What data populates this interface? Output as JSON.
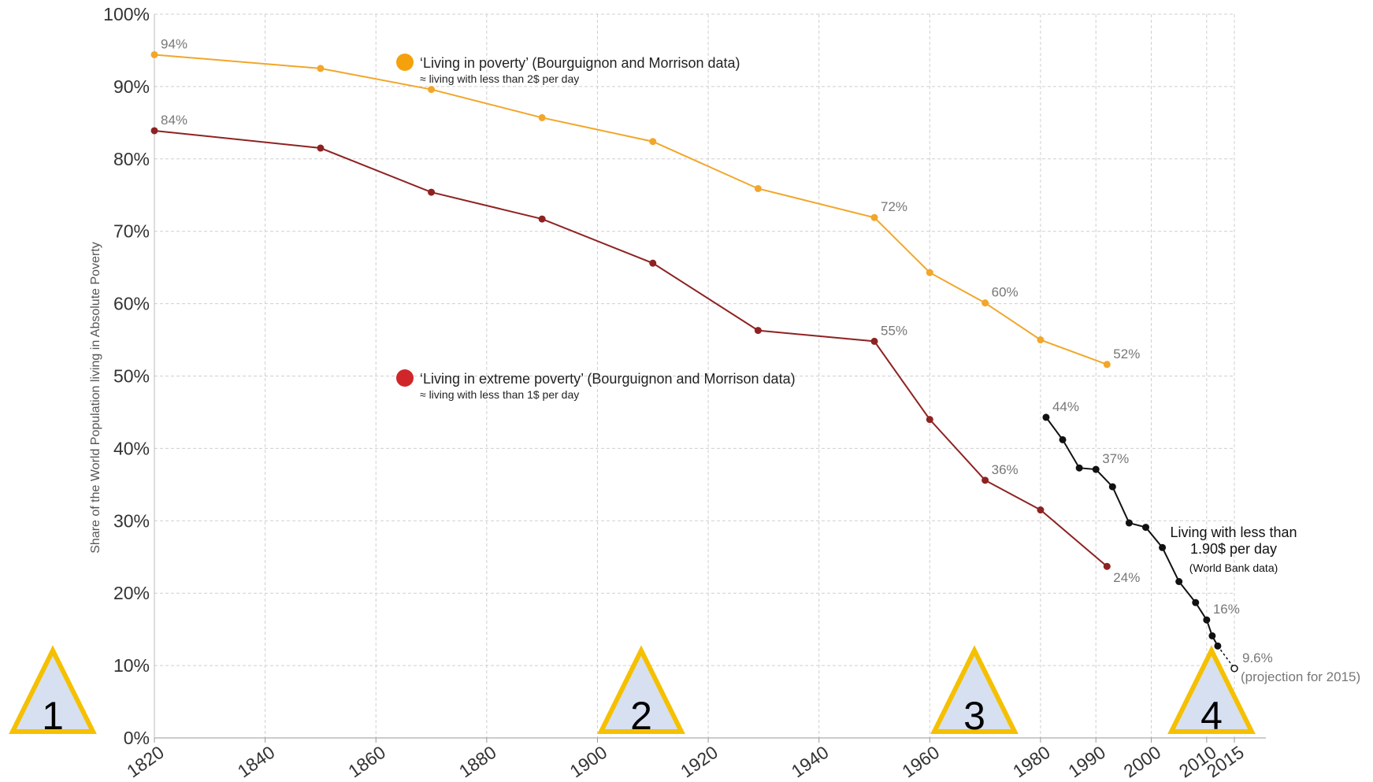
{
  "chart_data": {
    "type": "line",
    "ylabel": "Share of the World Population living in Absolute Poverty",
    "xlim": [
      1820,
      2015
    ],
    "xticks": [
      1820,
      1840,
      1860,
      1880,
      1900,
      1920,
      1940,
      1960,
      1980,
      1990,
      2000,
      2010,
      2015
    ],
    "ylim": [
      0,
      100
    ],
    "yticks": [
      {
        "value": 0,
        "label": "0%"
      },
      {
        "value": 10,
        "label": "10%"
      },
      {
        "value": 20,
        "label": "20%"
      },
      {
        "value": 30,
        "label": "30%"
      },
      {
        "value": 40,
        "label": "40%"
      },
      {
        "value": 50,
        "label": "50%"
      },
      {
        "value": 60,
        "label": "60%"
      },
      {
        "value": 70,
        "label": "70%"
      },
      {
        "value": 80,
        "label": "80%"
      },
      {
        "value": 90,
        "label": "90%"
      },
      {
        "value": 100,
        "label": "100%"
      }
    ],
    "grid": true,
    "series": [
      {
        "name": "‘Living in poverty’ (Bourguignon and Morrison data)",
        "note": "≈ living with less than 2$ per day",
        "color": "#f2a62a",
        "legend_color": "#f5a10c",
        "x": [
          1820,
          1850,
          1870,
          1890,
          1910,
          1929,
          1950,
          1960,
          1970,
          1980,
          1992
        ],
        "values": [
          94.4,
          92.5,
          89.6,
          85.7,
          82.4,
          75.9,
          71.9,
          64.3,
          60.1,
          55.0,
          51.6
        ],
        "value_labels": [
          "94%",
          null,
          null,
          null,
          null,
          null,
          "72%",
          null,
          "60%",
          null,
          "52%"
        ]
      },
      {
        "name": "‘Living in extreme poverty’ (Bourguignon and Morrison data)",
        "note": "≈ living with less than 1$ per day",
        "color": "#8e2222",
        "legend_color": "#d0262a",
        "x": [
          1820,
          1850,
          1870,
          1890,
          1910,
          1929,
          1950,
          1960,
          1970,
          1980,
          1992
        ],
        "values": [
          83.9,
          81.5,
          75.4,
          71.7,
          65.6,
          56.3,
          54.8,
          44.0,
          35.6,
          31.5,
          23.7
        ],
        "value_labels": [
          "84%",
          null,
          null,
          null,
          null,
          null,
          "55%",
          null,
          "36%",
          null,
          "24%"
        ]
      },
      {
        "name": "Living with less than 1.90$ per day",
        "note": "(World Bank data)",
        "color": "#111111",
        "last_point_projected": true,
        "x": [
          1981,
          1984,
          1987,
          1990,
          1993,
          1996,
          1999,
          2002,
          2005,
          2008,
          2010,
          2011,
          2012,
          2015
        ],
        "values": [
          44.3,
          41.2,
          37.3,
          37.1,
          34.7,
          29.7,
          29.1,
          26.3,
          21.6,
          18.7,
          16.3,
          14.1,
          12.7,
          9.6
        ],
        "value_labels": [
          "44%",
          null,
          null,
          "37%",
          null,
          null,
          null,
          null,
          null,
          null,
          "16%",
          null,
          null,
          "9.6%"
        ],
        "projection_label": "(projection for 2015)"
      }
    ],
    "markers": [
      "1",
      "2",
      "3",
      "4"
    ]
  }
}
